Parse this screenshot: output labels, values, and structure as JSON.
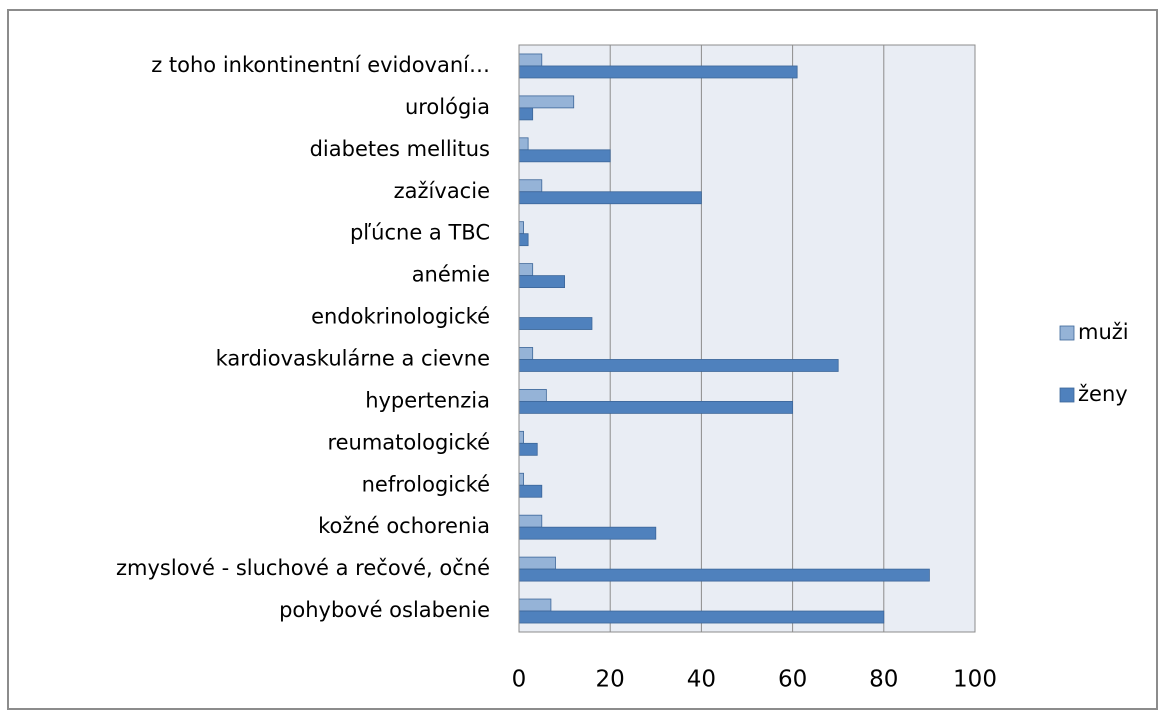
{
  "chart_data": {
    "type": "bar",
    "orientation": "horizontal",
    "categories": [
      "z toho  inkontinentní evidovaní…",
      "urológia",
      "diabetes mellitus",
      "zažívacie",
      "pľúcne a TBC",
      "anémie",
      "endokrinologické",
      "kardiovaskulárne  a cievne",
      "hypertenzia",
      "reumatologické",
      "nefrologické",
      "kožné ochorenia",
      "zmyslové - sluchové a rečové, očné",
      "pohybové oslabenie"
    ],
    "series": [
      {
        "name": "muži",
        "color": "#95b3d7",
        "values": [
          5,
          12,
          2,
          5,
          1,
          3,
          0,
          3,
          6,
          1,
          1,
          5,
          8,
          7
        ]
      },
      {
        "name": "ženy",
        "color": "#4f81bd",
        "values": [
          61,
          3,
          20,
          40,
          2,
          10,
          16,
          70,
          60,
          4,
          5,
          30,
          90,
          80
        ]
      }
    ],
    "xlim": [
      0,
      100
    ],
    "xticks": [
      0,
      20,
      40,
      60,
      80,
      100
    ],
    "grid": true,
    "legend": "right"
  }
}
